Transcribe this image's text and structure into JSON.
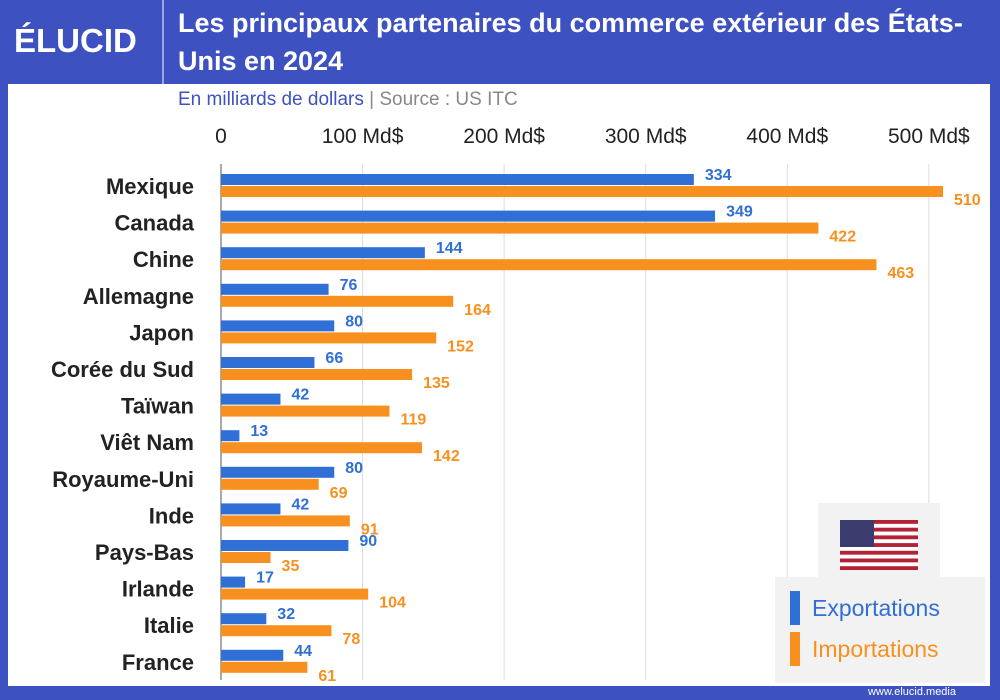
{
  "logo": "ÉLUCID",
  "title": "Les principaux partenaires du commerce extérieur des États-Unis en 2024",
  "subtitle": "En milliards de dollars",
  "subtitle_sep": "|",
  "source": "Source : US ITC",
  "footer": "www.elucid.media",
  "colors": {
    "exports": "#2f6fd6",
    "imports": "#f7901e",
    "brand": "#3d52c0"
  },
  "flag_icon": "us-flag-icon",
  "chart_data": {
    "type": "bar",
    "orientation": "horizontal",
    "xlim": [
      0,
      510
    ],
    "ticks": [
      0,
      100,
      200,
      300,
      400,
      500
    ],
    "tick_labels": [
      "0",
      "100 Md$",
      "200 Md$",
      "300 Md$",
      "400 Md$",
      "500 Md$"
    ],
    "grid": true,
    "legend": "bottom-right",
    "categories": [
      "Mexique",
      "Canada",
      "Chine",
      "Allemagne",
      "Japon",
      "Corée du Sud",
      "Taïwan",
      "Viêt Nam",
      "Royaume-Uni",
      "Inde",
      "Pays-Bas",
      "Irlande",
      "Italie",
      "France"
    ],
    "series": [
      {
        "name": "Exportations",
        "values": [
          334,
          349,
          144,
          76,
          80,
          66,
          42,
          13,
          80,
          42,
          90,
          17,
          32,
          44
        ]
      },
      {
        "name": "Importations",
        "values": [
          510,
          422,
          463,
          164,
          152,
          135,
          119,
          142,
          69,
          91,
          35,
          104,
          78,
          61
        ]
      }
    ]
  }
}
